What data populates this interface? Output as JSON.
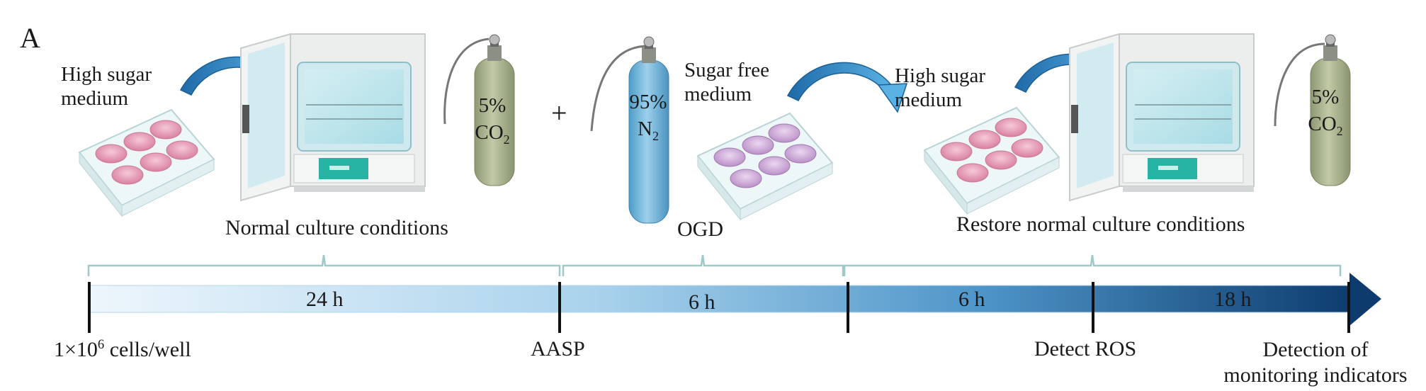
{
  "panel_label": "A",
  "stage1": {
    "medium_line1": "High sugar",
    "medium_line2": "medium",
    "gas_pct": "5%",
    "gas_formula": "CO",
    "gas_sub": "2"
  },
  "plus_sign": "+",
  "stage2": {
    "gas_pct": "95%",
    "gas_formula": "N",
    "gas_sub": "2",
    "medium_line1": "Sugar free",
    "medium_line2": "medium"
  },
  "stage3": {
    "medium_line1": "High sugar",
    "medium_line2": "medium",
    "gas_pct": "5%",
    "gas_formula": "CO",
    "gas_sub": "2"
  },
  "phases": {
    "normal": "Normal culture conditions",
    "ogd": "OGD",
    "restore": "Restore normal culture conditions"
  },
  "timeline": {
    "seg1": "24 h",
    "seg2": "6 h",
    "seg3": "6 h",
    "seg4": "18 h"
  },
  "markers": {
    "cells_prefix": "1×10",
    "cells_sup": "6",
    "cells_suffix": " cells/well",
    "aasp": "AASP",
    "detect_ros": "Detect ROS",
    "detection_line1": "Detection of",
    "detection_line2": "monitoring indicators"
  },
  "colors": {
    "timeline_start": "#e9f3fb",
    "timeline_mid": "#7fb8de",
    "timeline_end": "#0e3f73",
    "brace": "#9ec9c9",
    "arrow_blue": "#2f8cc8",
    "co2_cylinder": "#a9b38f",
    "n2_cylinder": "#6fb3d9",
    "well_pink": "#e69ab4",
    "well_purple": "#c8a2d2",
    "incubator_panel": "#27b5a6"
  }
}
